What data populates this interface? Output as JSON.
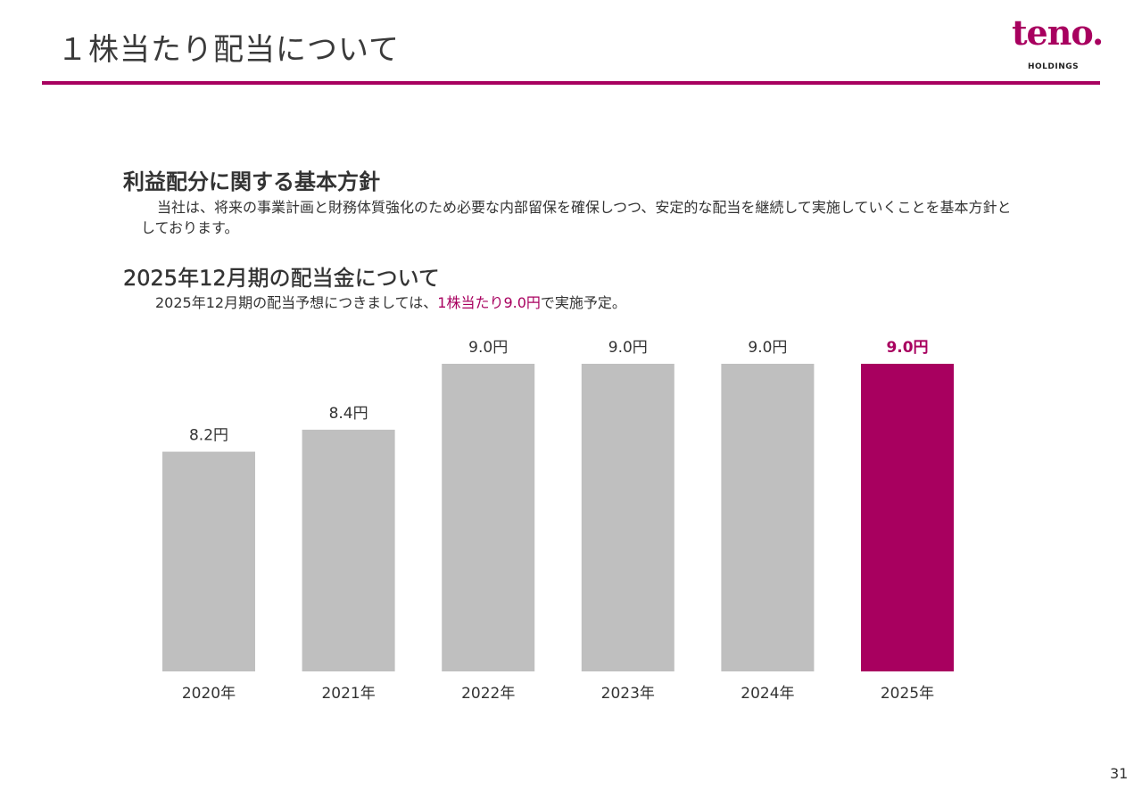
{
  "slide": {
    "title": "１株当たり配当について",
    "page_number": "31"
  },
  "logo": {
    "word": "teno.",
    "sub": "HOLDINGS"
  },
  "policy": {
    "heading": "利益配分に関する基本方針",
    "body": "当社は、将来の事業計画と財務体質強化のため必要な内部留保を確保しつつ、安定的な配当を継続して実施していくことを基本方針としております。"
  },
  "dividend": {
    "heading": "2025年12月期の配当金について",
    "note_prefix": "2025年12月期の配当予想につきましては、",
    "note_highlight": "1株当たり9.0円",
    "note_suffix": "で実施予定。"
  },
  "colors": {
    "accent": "#a8005f",
    "bar_default": "#bfbfbf"
  },
  "chart_data": {
    "type": "bar",
    "categories": [
      "2020年",
      "2021年",
      "2022年",
      "2023年",
      "2024年",
      "2025年"
    ],
    "values": [
      8.2,
      8.4,
      9.0,
      9.0,
      9.0,
      9.0
    ],
    "data_labels": [
      "8.2円",
      "8.4円",
      "9.0円",
      "9.0円",
      "9.0円",
      "9.0円"
    ],
    "highlight_index": 5,
    "title": "",
    "xlabel": "",
    "ylabel": "",
    "grid": false,
    "ylim": [
      6.2,
      9.0
    ]
  }
}
